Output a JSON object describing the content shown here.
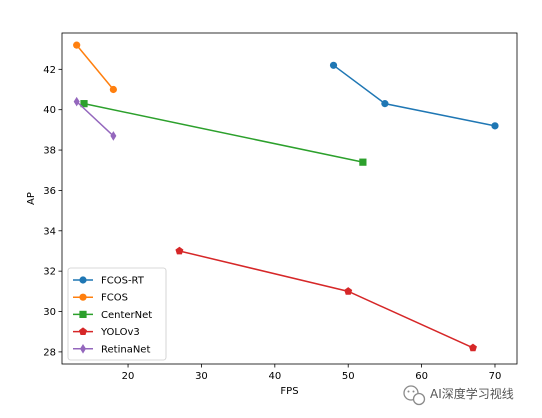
{
  "chart_data": {
    "type": "line",
    "xlabel": "FPS",
    "ylabel": "AP",
    "xlim": [
      11,
      73
    ],
    "ylim": [
      27.4,
      43.8
    ],
    "xticks": [
      10,
      20,
      30,
      40,
      50,
      60,
      70
    ],
    "yticks": [
      28,
      30,
      32,
      34,
      36,
      38,
      40,
      42
    ],
    "grid": false,
    "legend_position": "lower-left",
    "series": [
      {
        "name": "FCOS-RT",
        "color": "#1f77b4",
        "marker": "circle",
        "x": [
          48,
          55,
          70
        ],
        "y": [
          42.2,
          40.3,
          39.2
        ]
      },
      {
        "name": "FCOS",
        "color": "#ff7f0e",
        "marker": "circle",
        "x": [
          13,
          18
        ],
        "y": [
          43.2,
          41.0
        ]
      },
      {
        "name": "CenterNet",
        "color": "#2ca02c",
        "marker": "square",
        "x": [
          14,
          52
        ],
        "y": [
          40.3,
          37.4
        ]
      },
      {
        "name": "YOLOv3",
        "color": "#d62728",
        "marker": "pentagon",
        "x": [
          27,
          50,
          67
        ],
        "y": [
          33.0,
          31.0,
          28.2
        ]
      },
      {
        "name": "RetinaNet",
        "color": "#9467bd",
        "marker": "thin-diamond",
        "x": [
          13,
          18
        ],
        "y": [
          40.4,
          38.7
        ]
      }
    ]
  },
  "watermark": {
    "text": "AI深度学习视线",
    "icon": "wechat-icon"
  }
}
